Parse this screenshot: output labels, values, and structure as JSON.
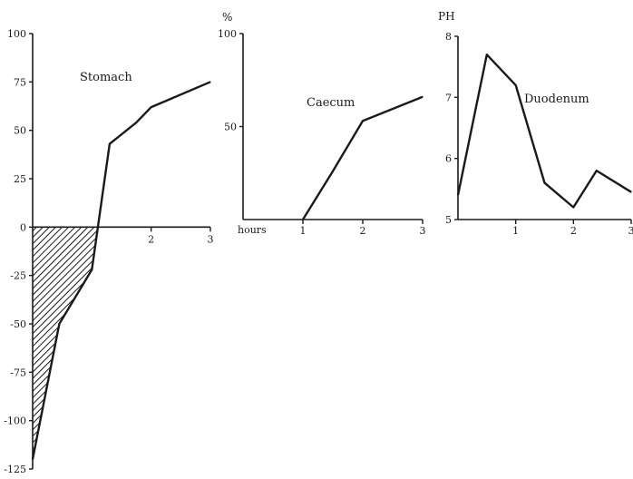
{
  "colors": {
    "ink": "#1a1a1a",
    "background": "#ffffff"
  },
  "chart_data": [
    {
      "type": "line",
      "title": "Stomach",
      "y_unit": "",
      "x_unit": "",
      "x_ticks": [
        2,
        3
      ],
      "y_ticks": [
        100,
        75,
        50,
        25,
        0,
        -25,
        -50,
        -75,
        -100,
        -125
      ],
      "xlim": [
        0,
        3
      ],
      "ylim": [
        -125,
        100
      ],
      "shaded_region": "area below 0",
      "x": [
        0,
        0.45,
        1.0,
        1.3,
        1.75,
        2.0,
        3.0
      ],
      "y": [
        -120,
        -50,
        -22,
        43,
        54,
        62,
        75
      ]
    },
    {
      "type": "line",
      "title": "Caecum",
      "y_unit": "%",
      "x_unit": "hours",
      "x_ticks": [
        1,
        2,
        3
      ],
      "y_ticks": [
        100,
        50
      ],
      "xlim": [
        0,
        3
      ],
      "ylim": [
        0,
        100
      ],
      "x": [
        1.0,
        1.5,
        2.0,
        3.0
      ],
      "y": [
        0,
        26,
        53,
        66
      ]
    },
    {
      "type": "line",
      "title": "Duodenum",
      "y_unit": "PH",
      "x_unit": "",
      "x_ticks": [
        1,
        2,
        3
      ],
      "y_ticks": [
        8,
        7,
        6,
        5
      ],
      "xlim": [
        0,
        3
      ],
      "ylim": [
        5,
        8
      ],
      "x": [
        0,
        0.5,
        1.0,
        1.5,
        2.0,
        2.4,
        3.0
      ],
      "y": [
        5.4,
        7.7,
        7.2,
        5.6,
        5.2,
        5.8,
        5.45
      ]
    }
  ]
}
